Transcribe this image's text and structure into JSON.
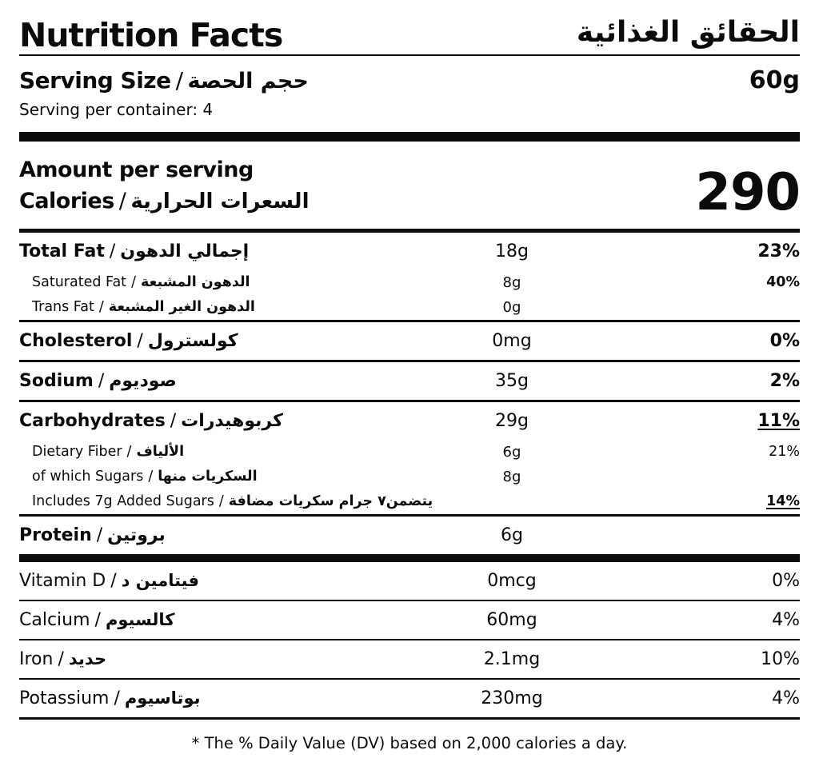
{
  "separator": "/",
  "header": {
    "title_en": "Nutrition Facts",
    "title_ar": "الحقائق الغذائية"
  },
  "serving": {
    "label_en": "Serving Size",
    "label_ar": "حجم الحصة",
    "size": "60g",
    "per_container": "Serving per container: 4"
  },
  "calories": {
    "amount_per_serving": "Amount per serving",
    "label_en": "Calories",
    "label_ar": "السعرات الحرارية",
    "value": "290"
  },
  "nutrients": [
    {
      "label_en": "Total Fat",
      "label_ar": "إجمالي الدهون",
      "value": "18g",
      "dv": "23%"
    },
    {
      "label_en": "Saturated Fat",
      "label_ar": "الدهون المشبعة",
      "value": "8g",
      "dv": "40%"
    },
    {
      "label_en": "Trans Fat",
      "label_ar": "الدهون الغير المشبعة",
      "value": "0g",
      "dv": ""
    },
    {
      "label_en": "Cholesterol",
      "label_ar": "كولسترول",
      "value": "0mg",
      "dv": "0%"
    },
    {
      "label_en": "Sodium",
      "label_ar": "صوديوم",
      "value": "35g",
      "dv": "2%"
    },
    {
      "label_en": "Carbohydrates",
      "label_ar": "كربوهيدرات",
      "value": "29g",
      "dv": "11%"
    },
    {
      "label_en": "Dietary Fiber",
      "label_ar": "الألياف",
      "value": "6g",
      "dv": "21%"
    },
    {
      "label_en": "of which Sugars",
      "label_ar": "السكريات منها",
      "value": "8g",
      "dv": ""
    },
    {
      "label_en": "Includes 7g Added Sugars",
      "label_ar": "يتضمن٧ جرام سكريات مضافة",
      "value": "",
      "dv": "14%"
    },
    {
      "label_en": "Protein",
      "label_ar": "بروتين",
      "value": "6g",
      "dv": ""
    }
  ],
  "vitamins": [
    {
      "label_en": "Vitamin D",
      "label_ar": "فيتامين د",
      "value": "0mcg",
      "dv": "0%"
    },
    {
      "label_en": "Calcium",
      "label_ar": "كالسيوم",
      "value": "60mg",
      "dv": "4%"
    },
    {
      "label_en": "Iron",
      "label_ar": "حديد",
      "value": "2.1mg",
      "dv": "10%"
    },
    {
      "label_en": "Potassium",
      "label_ar": "بوتاسيوم",
      "value": "230mg",
      "dv": "4%"
    }
  ],
  "footer": {
    "note": "* The % Daily Value (DV) based on 2,000 calories a day."
  },
  "colors": {
    "text": "#0b0b0b",
    "background": "#ffffff"
  }
}
